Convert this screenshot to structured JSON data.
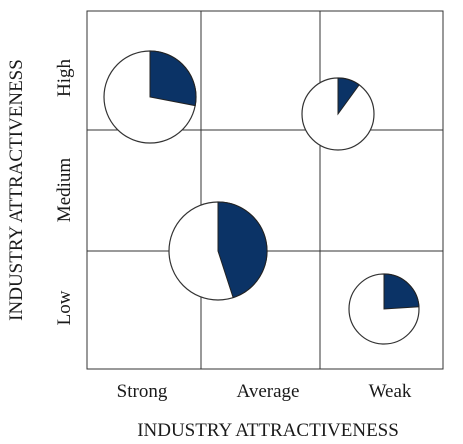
{
  "y_axis": {
    "title": "INDUSTRY ATTRACTIVENESS",
    "ticks": [
      "High",
      "Medium",
      "Low"
    ]
  },
  "x_axis": {
    "title": "INDUSTRY ATTRACTIVENESS",
    "ticks": [
      "Strong",
      "Average",
      "Weak"
    ]
  },
  "colors": {
    "slice": "#0b3366",
    "outline": "#333333"
  },
  "businesses": [
    {
      "column": "Strong",
      "row": "High",
      "share_fraction": 0.28,
      "relative_size": 1.0
    },
    {
      "column": "Weak",
      "row": "High",
      "share_fraction": 0.1,
      "relative_size": 0.78
    },
    {
      "column": "Average",
      "row": "Medium/Low",
      "share_fraction": 0.45,
      "relative_size": 1.08
    },
    {
      "column": "Weak",
      "row": "Low",
      "share_fraction": 0.24,
      "relative_size": 0.75
    }
  ]
}
